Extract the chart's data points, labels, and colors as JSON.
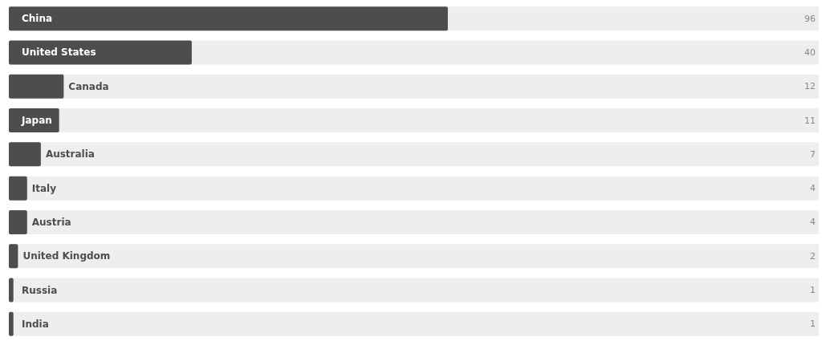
{
  "chart_data": {
    "type": "bar",
    "orientation": "horizontal",
    "categories": [
      "China",
      "United States",
      "Canada",
      "Japan",
      "Australia",
      "Italy",
      "Austria",
      "United Kingdom",
      "Russia",
      "India"
    ],
    "values": [
      96,
      40,
      12,
      11,
      7,
      4,
      4,
      2,
      1,
      1
    ],
    "color": "#4d4d4d",
    "data_labels": true
  }
}
